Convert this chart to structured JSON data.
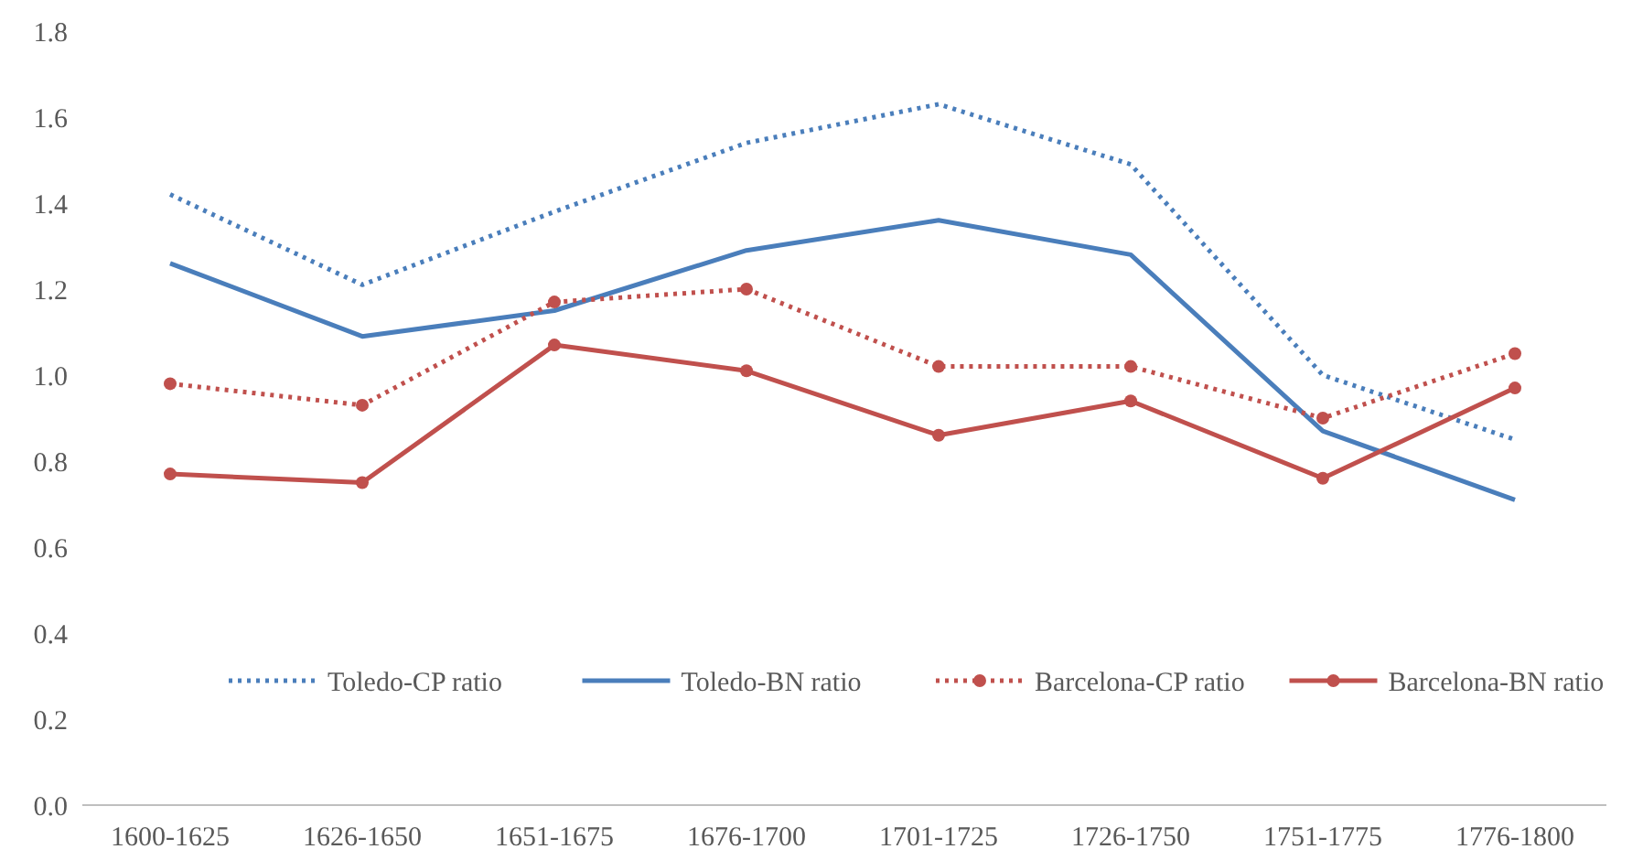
{
  "chart_data": {
    "type": "line",
    "categories": [
      "1600-1625",
      "1626-1650",
      "1651-1675",
      "1676-1700",
      "1701-1725",
      "1726-1750",
      "1751-1775",
      "1776-1800"
    ],
    "ylim": [
      0,
      1.8
    ],
    "yticks": [
      {
        "value": 0,
        "label": "0.0"
      },
      {
        "value": 0.2,
        "label": "0.2"
      },
      {
        "value": 0.4,
        "label": "0.4"
      },
      {
        "value": 0.6,
        "label": "0.6"
      },
      {
        "value": 0.8,
        "label": "0.8"
      },
      {
        "value": 1,
        "label": "1.0"
      },
      {
        "value": 1.2,
        "label": "1.2"
      },
      {
        "value": 1.4,
        "label": "1.4"
      },
      {
        "value": 1.6,
        "label": "1.6"
      },
      {
        "value": 1.8,
        "label": "1.8"
      }
    ],
    "grid": false,
    "legend": "bottom",
    "series": [
      {
        "name": "Toledo-CP ratio",
        "color": "#4a7ebb",
        "line_style": "dotted",
        "marker": "none",
        "values": [
          1.42,
          1.21,
          1.38,
          1.54,
          1.63,
          1.49,
          1.0,
          0.85
        ]
      },
      {
        "name": "Toledo-BN ratio",
        "color": "#4a7ebb",
        "line_style": "solid",
        "marker": "none",
        "values": [
          1.26,
          1.09,
          1.15,
          1.29,
          1.36,
          1.28,
          0.87,
          0.71
        ]
      },
      {
        "name": "Barcelona-CP ratio",
        "color": "#c0504d",
        "line_style": "dotted",
        "marker": "circle",
        "values": [
          0.98,
          0.93,
          1.17,
          1.2,
          1.02,
          1.02,
          0.9,
          1.05
        ]
      },
      {
        "name": "Barcelona-BN ratio",
        "color": "#c0504d",
        "line_style": "solid",
        "marker": "circle",
        "values": [
          0.77,
          0.75,
          1.07,
          1.01,
          0.86,
          0.94,
          0.76,
          0.97
        ]
      }
    ]
  }
}
